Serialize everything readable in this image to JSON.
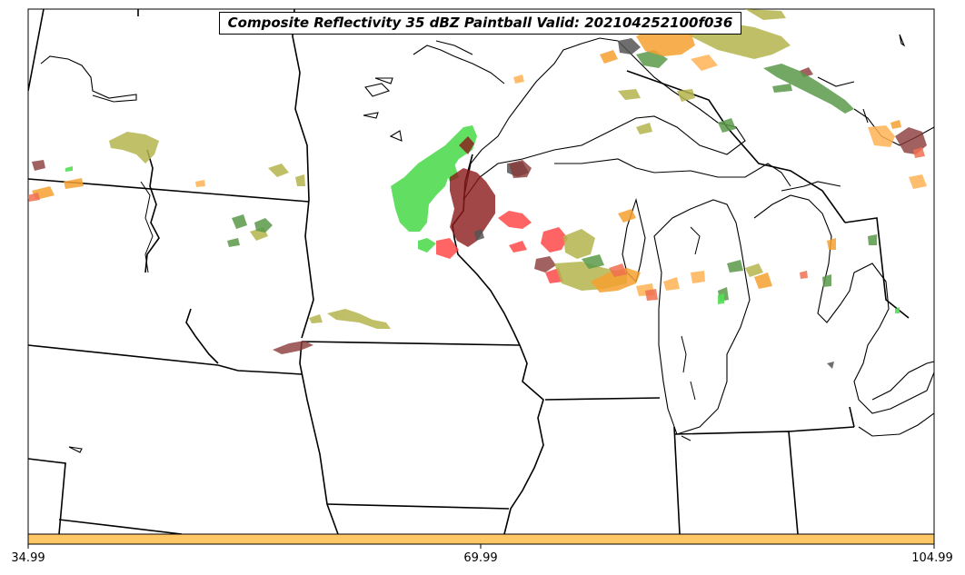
{
  "title": "Composite Reflectivity 35 dBZ Paintball Valid: 202104252100f036",
  "colorbar": {
    "ticks": [
      "34.99",
      "69.99",
      "104.99"
    ],
    "color": "#ffc766"
  },
  "paintball_colors": {
    "green": "#55dd55",
    "olive": "#b5b54d",
    "dark_green": "#5a9a4a",
    "orange": "#f5a030",
    "light_orange": "#ffb355",
    "red": "#ff4a4a",
    "dark_red": "#8b1a1a",
    "gray": "#555555",
    "maroon": "#8a3a3a",
    "salmon": "#f07050"
  },
  "labels": {
    "state_borders": "state-borders",
    "coastline": "great-lakes-coastline"
  }
}
